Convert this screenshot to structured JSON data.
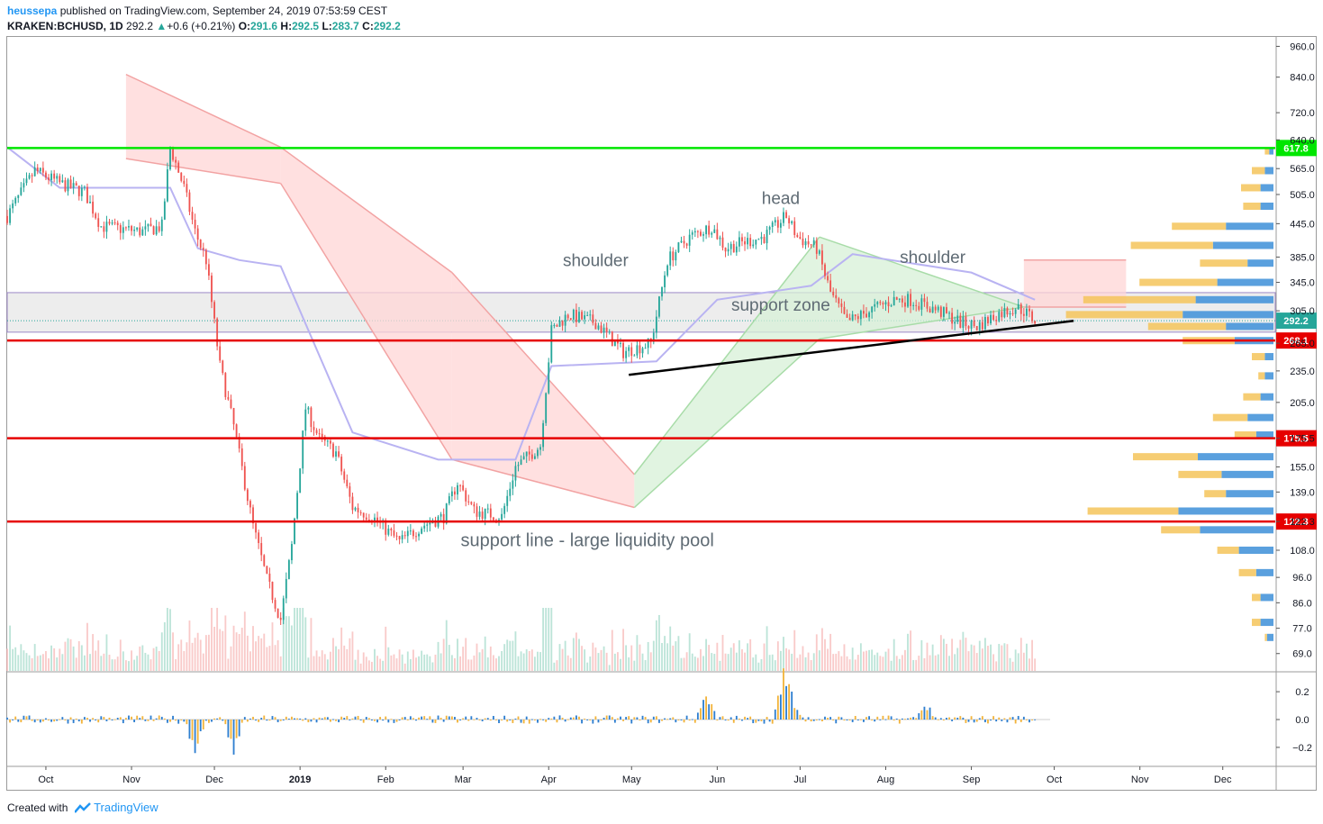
{
  "header": {
    "author": "heussepa",
    "published_text": "published on TradingView.com, September 24, 2019 07:53:59 CEST",
    "symbol": "KRAKEN:BCHUSD, 1D",
    "last": "292.2",
    "change": "+0.6 (+0.21%)",
    "open_label": "O:",
    "open": "291.6",
    "high_label": "H:",
    "high": "292.5",
    "low_label": "L:",
    "low": "283.7",
    "close_label": "C:",
    "close": "292.2"
  },
  "footer": {
    "created_with": "Created with",
    "brand": "TradingView"
  },
  "colors": {
    "up": "#26a69a",
    "down": "#ef5350",
    "green_line": "#00e600",
    "red_line": "#e60000",
    "zone_fill": "#e6e6e6",
    "zone_border": "#9c88c7",
    "trend": "#000000",
    "kumo_bear": "#ffd6d6",
    "kumo_bull": "#d7f0d7",
    "kijun": "#b9b3f2",
    "vp_up": "#f4c45a",
    "vp_down": "#3d8fd8"
  },
  "chart_data": {
    "type": "candlestick",
    "title": "",
    "y_axis": {
      "scale": "log",
      "ylim": [
        64,
        1000
      ],
      "tick_labels": [
        "960.0",
        "840.0",
        "720.0",
        "640.0",
        "565.0",
        "505.0",
        "445.0",
        "385.0",
        "345.0",
        "305.0",
        "265.0",
        "235.0",
        "205.0",
        "175.5",
        "155.0",
        "139.0",
        "122.3",
        "108.0",
        "96.0",
        "86.0",
        "77.0",
        "69.0"
      ]
    },
    "x_axis": {
      "range": [
        "2018-09-17",
        "2019-12-20"
      ],
      "tick_labels": [
        {
          "label": "Oct",
          "date": "2018-10-01"
        },
        {
          "label": "Nov",
          "date": "2018-11-01"
        },
        {
          "label": "Dec",
          "date": "2018-12-01"
        },
        {
          "label": "2019",
          "date": "2019-01-01",
          "bold": true
        },
        {
          "label": "Feb",
          "date": "2019-02-01"
        },
        {
          "label": "Mar",
          "date": "2019-03-01"
        },
        {
          "label": "Apr",
          "date": "2019-04-01"
        },
        {
          "label": "May",
          "date": "2019-05-01"
        },
        {
          "label": "Jun",
          "date": "2019-06-01"
        },
        {
          "label": "Jul",
          "date": "2019-07-01"
        },
        {
          "label": "Aug",
          "date": "2019-08-01"
        },
        {
          "label": "Sep",
          "date": "2019-09-01"
        },
        {
          "label": "Oct",
          "date": "2019-10-01"
        },
        {
          "label": "Nov",
          "date": "2019-11-01"
        },
        {
          "label": "Dec",
          "date": "2019-12-01"
        }
      ]
    },
    "price_path": [
      [
        "2018-09-17",
        460
      ],
      [
        "2018-09-27",
        560
      ],
      [
        "2018-10-06",
        530
      ],
      [
        "2018-10-15",
        510
      ],
      [
        "2018-10-21",
        440
      ],
      [
        "2018-11-05",
        430
      ],
      [
        "2018-11-12",
        440
      ],
      [
        "2018-11-15",
        620
      ],
      [
        "2018-11-20",
        520
      ],
      [
        "2018-11-24",
        430
      ],
      [
        "2018-11-28",
        380
      ],
      [
        "2018-12-03",
        240
      ],
      [
        "2018-12-08",
        185
      ],
      [
        "2018-12-15",
        120
      ],
      [
        "2018-12-20",
        95
      ],
      [
        "2018-12-25",
        80
      ],
      [
        "2018-12-29",
        110
      ],
      [
        "2019-01-03",
        200
      ],
      [
        "2019-01-08",
        175
      ],
      [
        "2019-01-14",
        165
      ],
      [
        "2019-01-20",
        130
      ],
      [
        "2019-01-27",
        125
      ],
      [
        "2019-02-06",
        112
      ],
      [
        "2019-02-14",
        120
      ],
      [
        "2019-02-22",
        125
      ],
      [
        "2019-02-27",
        145
      ],
      [
        "2019-03-05",
        128
      ],
      [
        "2019-03-15",
        125
      ],
      [
        "2019-03-20",
        155
      ],
      [
        "2019-03-29",
        170
      ],
      [
        "2019-04-02",
        280
      ],
      [
        "2019-04-08",
        300
      ],
      [
        "2019-04-18",
        290
      ],
      [
        "2019-04-28",
        255
      ],
      [
        "2019-05-08",
        265
      ],
      [
        "2019-05-14",
        380
      ],
      [
        "2019-05-22",
        420
      ],
      [
        "2019-05-30",
        440
      ],
      [
        "2019-06-04",
        400
      ],
      [
        "2019-06-10",
        410
      ],
      [
        "2019-06-18",
        420
      ],
      [
        "2019-06-26",
        460
      ],
      [
        "2019-06-30",
        420
      ],
      [
        "2019-07-07",
        400
      ],
      [
        "2019-07-12",
        330
      ],
      [
        "2019-07-18",
        290
      ],
      [
        "2019-07-26",
        305
      ],
      [
        "2019-08-04",
        320
      ],
      [
        "2019-08-10",
        320
      ],
      [
        "2019-08-20",
        305
      ],
      [
        "2019-08-28",
        290
      ],
      [
        "2019-09-03",
        285
      ],
      [
        "2019-09-10",
        300
      ],
      [
        "2019-09-17",
        310
      ],
      [
        "2019-09-20",
        305
      ],
      [
        "2019-09-24",
        292.2
      ]
    ],
    "horizontal_lines": [
      {
        "price": 617.8,
        "label": "617.8",
        "color": "#00e600"
      },
      {
        "price": 268.1,
        "label": "268.1",
        "color": "#e60000"
      },
      {
        "price": 175.5,
        "label": "175.5",
        "color": "#e60000"
      },
      {
        "price": 122.3,
        "label": "122.3",
        "color": "#e60000"
      }
    ],
    "last_price_label": "292.2",
    "support_zone": {
      "from": 278,
      "to": 330
    },
    "trendline": {
      "from": [
        "2019-04-30",
        231
      ],
      "to": [
        "2019-10-08",
        292
      ]
    },
    "ichimoku_cloud": [
      {
        "start": "2018-10-30",
        "end": "2018-12-25",
        "top": [
          850,
          620
        ],
        "bottom": [
          590,
          530
        ],
        "sentiment": "bearish"
      },
      {
        "start": "2018-12-25",
        "end": "2019-02-25",
        "top": [
          620,
          360
        ],
        "bottom": [
          530,
          160
        ],
        "sentiment": "bearish"
      },
      {
        "start": "2019-02-25",
        "end": "2019-05-02",
        "top": [
          360,
          150
        ],
        "bottom": [
          160,
          130
        ],
        "sentiment": "bearish"
      },
      {
        "start": "2019-05-02",
        "end": "2019-07-08",
        "top": [
          150,
          420
        ],
        "bottom": [
          130,
          270
        ],
        "sentiment": "bullish"
      },
      {
        "start": "2019-07-08",
        "end": "2019-09-20",
        "top": [
          420,
          310
        ],
        "bottom": [
          270,
          310
        ],
        "sentiment": "bullish"
      },
      {
        "start": "2019-09-20",
        "end": "2019-10-27",
        "top": [
          380,
          380
        ],
        "bottom": [
          310,
          310
        ],
        "sentiment": "bearish"
      }
    ],
    "kijun_path": [
      [
        "2018-09-17",
        620
      ],
      [
        "2018-10-06",
        520
      ],
      [
        "2018-11-15",
        520
      ],
      [
        "2018-11-25",
        400
      ],
      [
        "2018-12-10",
        380
      ],
      [
        "2018-12-25",
        370
      ],
      [
        "2019-01-20",
        180
      ],
      [
        "2019-02-20",
        160
      ],
      [
        "2019-03-20",
        160
      ],
      [
        "2019-04-02",
        240
      ],
      [
        "2019-05-10",
        245
      ],
      [
        "2019-06-01",
        320
      ],
      [
        "2019-07-05",
        340
      ],
      [
        "2019-07-20",
        390
      ],
      [
        "2019-09-01",
        360
      ],
      [
        "2019-09-24",
        320
      ]
    ],
    "volume_profile": [
      {
        "price": 610,
        "up": 2,
        "down": 2
      },
      {
        "price": 560,
        "up": 6,
        "down": 4
      },
      {
        "price": 520,
        "up": 9,
        "down": 6
      },
      {
        "price": 480,
        "up": 8,
        "down": 6
      },
      {
        "price": 440,
        "up": 25,
        "down": 22
      },
      {
        "price": 405,
        "up": 38,
        "down": 28
      },
      {
        "price": 375,
        "up": 22,
        "down": 12
      },
      {
        "price": 345,
        "up": 36,
        "down": 26
      },
      {
        "price": 320,
        "up": 52,
        "down": 36
      },
      {
        "price": 300,
        "up": 54,
        "down": 42
      },
      {
        "price": 285,
        "up": 36,
        "down": 22
      },
      {
        "price": 268,
        "up": 24,
        "down": 18
      },
      {
        "price": 250,
        "up": 6,
        "down": 4
      },
      {
        "price": 230,
        "up": 3,
        "down": 4
      },
      {
        "price": 210,
        "up": 8,
        "down": 6
      },
      {
        "price": 192,
        "up": 16,
        "down": 12
      },
      {
        "price": 178,
        "up": 10,
        "down": 8
      },
      {
        "price": 162,
        "up": 30,
        "down": 35
      },
      {
        "price": 150,
        "up": 20,
        "down": 24
      },
      {
        "price": 138,
        "up": 10,
        "down": 22
      },
      {
        "price": 128,
        "up": 42,
        "down": 44
      },
      {
        "price": 118,
        "up": 18,
        "down": 34
      },
      {
        "price": 108,
        "up": 10,
        "down": 16
      },
      {
        "price": 98,
        "up": 8,
        "down": 8
      },
      {
        "price": 88,
        "up": 4,
        "down": 6
      },
      {
        "price": 79,
        "up": 4,
        "down": 6
      },
      {
        "price": 74,
        "up": 1,
        "down": 3
      }
    ],
    "oscillator": {
      "ylim": [
        -0.33,
        0.33
      ],
      "tick_labels": [
        "0.2",
        "0.0",
        "−0.2"
      ],
      "notable": [
        {
          "date": "2018-11-24",
          "value": -0.28
        },
        {
          "date": "2018-12-08",
          "value": -0.25
        },
        {
          "date": "2019-05-28",
          "value": 0.24
        },
        {
          "date": "2019-06-25",
          "value": 0.33
        },
        {
          "date": "2019-06-28",
          "value": 0.22
        },
        {
          "date": "2019-08-15",
          "value": 0.12
        }
      ]
    },
    "annotations": [
      {
        "text": "head",
        "date": "2019-06-24",
        "price": 485
      },
      {
        "text": "shoulder",
        "date": "2019-04-18",
        "price": 370
      },
      {
        "text": "shoulder",
        "date": "2019-08-18",
        "price": 375
      },
      {
        "text": "support zone",
        "date": "2019-06-24",
        "price": 305
      },
      {
        "text": "support line - large liquidity pool",
        "date": "2019-04-15",
        "price": 110
      }
    ]
  }
}
